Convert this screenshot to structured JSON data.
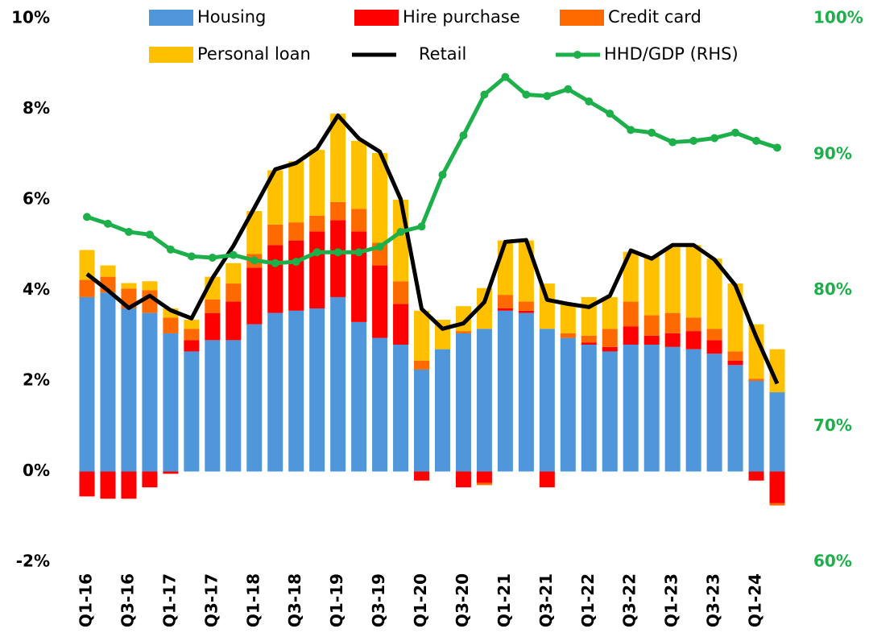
{
  "chart_data": {
    "type": "bar",
    "categories": [
      "Q1-16",
      null,
      "Q3-16",
      null,
      "Q1-17",
      null,
      "Q3-17",
      null,
      "Q1-18",
      null,
      "Q3-18",
      null,
      "Q1-19",
      null,
      "Q3-19",
      null,
      "Q1-20",
      null,
      "Q3-20",
      null,
      "Q1-21",
      null,
      "Q3-21",
      null,
      "Q1-22",
      null,
      "Q3-22",
      null,
      "Q1-23",
      null,
      "Q3-23",
      null,
      "Q1-24",
      null
    ],
    "series": [
      {
        "name": "Housing",
        "type": "bar",
        "color": "#5096da",
        "values": [
          3.85,
          3.95,
          3.6,
          3.5,
          3.05,
          2.65,
          2.9,
          2.9,
          3.25,
          3.5,
          3.55,
          3.6,
          3.85,
          3.3,
          2.95,
          2.8,
          2.25,
          2.7,
          3.05,
          3.15,
          3.55,
          3.5,
          3.15,
          2.95,
          2.8,
          2.65,
          2.8,
          2.8,
          2.75,
          2.7,
          2.6,
          2.35,
          2.0,
          1.75
        ]
      },
      {
        "name": "Hire purchase",
        "type": "bar",
        "color": "#ff0000",
        "values": [
          -0.55,
          -0.6,
          -0.6,
          -0.35,
          -0.05,
          0.25,
          0.6,
          0.85,
          1.25,
          1.5,
          1.55,
          1.7,
          1.7,
          2.0,
          1.6,
          0.9,
          -0.2,
          0,
          -0.35,
          -0.25,
          0.05,
          0.05,
          -0.35,
          0,
          0.05,
          0.1,
          0.4,
          0.2,
          0.3,
          0.4,
          0.3,
          0.1,
          -0.2,
          -0.7
        ]
      },
      {
        "name": "Credit card",
        "type": "bar",
        "color": "#ff6a00",
        "values": [
          0.38,
          0.35,
          0.44,
          0.5,
          0.35,
          0.25,
          0.3,
          0.4,
          0.3,
          0.45,
          0.4,
          0.35,
          0.4,
          0.5,
          0.5,
          0.5,
          0.2,
          0,
          0.05,
          -0.05,
          0.3,
          0.2,
          0,
          0.1,
          0.15,
          0.4,
          0.55,
          0.45,
          0.45,
          0.3,
          0.25,
          0.2,
          0.05,
          -0.05
        ]
      },
      {
        "name": "Personal loan",
        "type": "bar",
        "color": "#ffc000",
        "values": [
          0.66,
          0.25,
          0.12,
          0.2,
          0.2,
          0.2,
          0.5,
          0.45,
          0.95,
          1.2,
          1.35,
          1.45,
          1.95,
          1.5,
          1.98,
          1.8,
          1.1,
          0.65,
          0.55,
          0.9,
          1.2,
          1.35,
          1.0,
          0.65,
          0.85,
          0.7,
          1.1,
          1.3,
          1.45,
          1.6,
          1.55,
          1.5,
          1.2,
          0.95
        ]
      },
      {
        "name": "Retail",
        "type": "line",
        "color": "#000000",
        "values": [
          4.36,
          4.0,
          3.61,
          3.88,
          3.56,
          3.38,
          4.27,
          4.98,
          5.82,
          6.67,
          6.81,
          7.13,
          7.86,
          7.35,
          7.06,
          6.01,
          3.59,
          3.15,
          3.27,
          3.74,
          5.07,
          5.11,
          3.79,
          3.7,
          3.63,
          3.88,
          4.88,
          4.7,
          5.0,
          5.0,
          4.68,
          4.11,
          2.97,
          1.94
        ]
      },
      {
        "name": "HHD/GDP (RHS)",
        "type": "line",
        "axis": "y2",
        "marker": true,
        "color": "#1db04a",
        "values": [
          85.4,
          84.9,
          84.3,
          84.1,
          83.0,
          82.5,
          82.4,
          82.6,
          82.2,
          82.0,
          82.1,
          82.8,
          82.8,
          82.8,
          83.2,
          84.3,
          84.7,
          88.5,
          91.4,
          94.4,
          95.7,
          94.4,
          94.3,
          94.8,
          93.9,
          93.0,
          91.8,
          91.6,
          90.9,
          91.0,
          91.2,
          91.6,
          91.0,
          90.5
        ]
      }
    ],
    "ylim": [
      -2,
      10
    ],
    "yticks": [
      {
        "value": -2,
        "label": "-2%"
      },
      {
        "value": 0,
        "label": "0%"
      },
      {
        "value": 2,
        "label": "2%"
      },
      {
        "value": 4,
        "label": "4%"
      },
      {
        "value": 6,
        "label": "6%"
      },
      {
        "value": 8,
        "label": "8%"
      },
      {
        "value": 10,
        "label": "10%"
      }
    ],
    "y2lim": [
      60,
      100
    ],
    "y2ticks": [
      {
        "value": 60,
        "label": "60%"
      },
      {
        "value": 70,
        "label": "70%"
      },
      {
        "value": 80,
        "label": "80%"
      },
      {
        "value": 90,
        "label": "90%"
      },
      {
        "value": 100,
        "label": "100%"
      }
    ],
    "y2color": "#1db04a"
  }
}
